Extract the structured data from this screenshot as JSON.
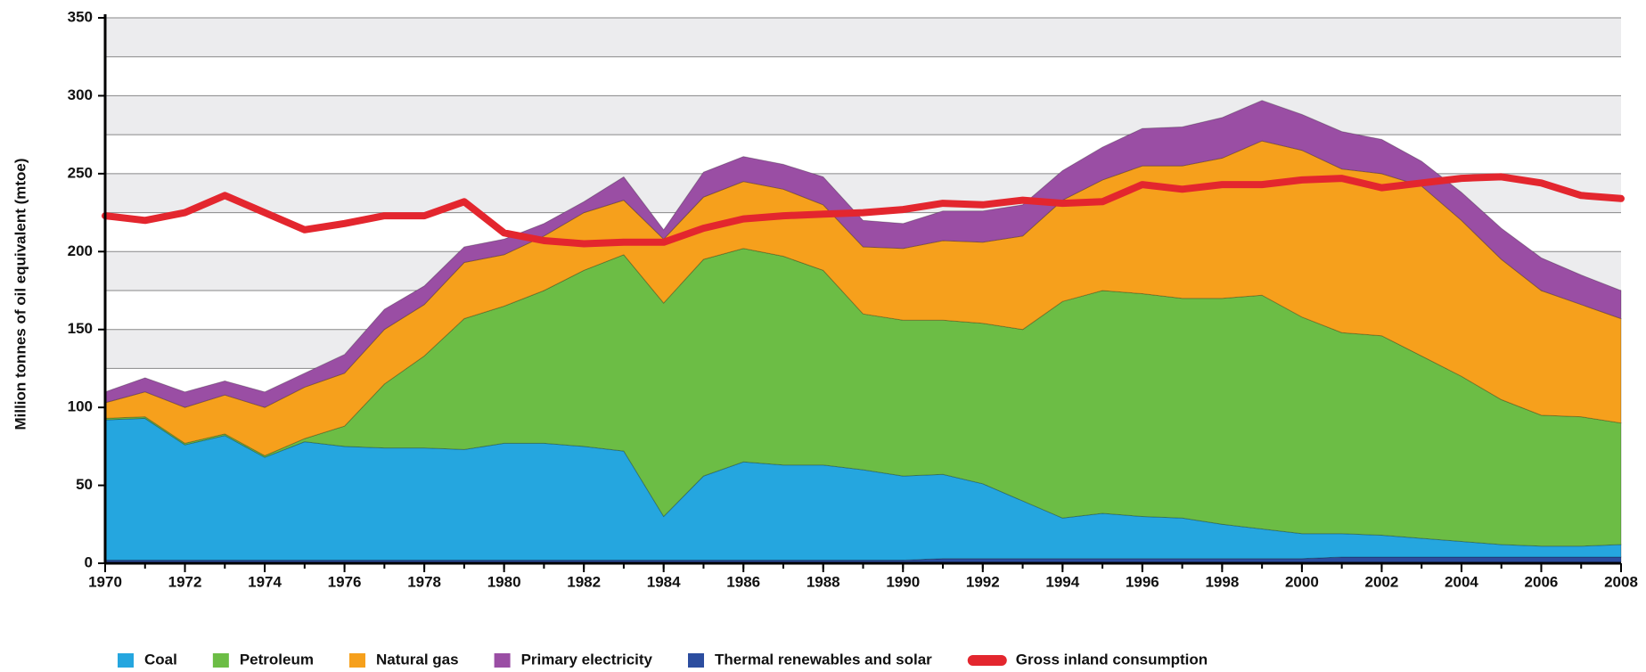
{
  "chart_data": {
    "type": "stacked_area",
    "ylabel": "Million tonnes of oil equivalent (mtoe)",
    "x": [
      1970,
      1971,
      1972,
      1973,
      1974,
      1975,
      1976,
      1977,
      1978,
      1979,
      1980,
      1981,
      1982,
      1983,
      1984,
      1985,
      1986,
      1987,
      1988,
      1989,
      1990,
      1991,
      1992,
      1993,
      1994,
      1995,
      1996,
      1997,
      1998,
      1999,
      2000,
      2001,
      2002,
      2003,
      2004,
      2005,
      2006,
      2007,
      2008
    ],
    "xlim": [
      1970,
      2008
    ],
    "xticks": [
      1970,
      1972,
      1974,
      1976,
      1978,
      1980,
      1982,
      1984,
      1986,
      1988,
      1990,
      1992,
      1994,
      1996,
      1998,
      2000,
      2002,
      2004,
      2006,
      2008
    ],
    "ylim": [
      0,
      350
    ],
    "yticks": [
      0,
      50,
      100,
      150,
      200,
      250,
      300,
      350
    ],
    "grid": true,
    "legend": "bottom",
    "stack_order": [
      4,
      0,
      1,
      2,
      3
    ],
    "series": [
      {
        "name": "Coal",
        "color": "#25a6df",
        "values": [
          90,
          91,
          74,
          80,
          66,
          76,
          73,
          72,
          72,
          71,
          75,
          75,
          73,
          70,
          28,
          54,
          63,
          61,
          61,
          58,
          54,
          54,
          48,
          37,
          26,
          29,
          27,
          26,
          22,
          19,
          16,
          15,
          14,
          12,
          10,
          8,
          7,
          7,
          8
        ]
      },
      {
        "name": "Petroleum",
        "color": "#6cbd45",
        "values": [
          1,
          1,
          1,
          1,
          1,
          2,
          13,
          41,
          59,
          84,
          88,
          98,
          113,
          126,
          137,
          139,
          137,
          134,
          125,
          100,
          100,
          99,
          103,
          110,
          139,
          143,
          143,
          141,
          145,
          150,
          139,
          129,
          128,
          117,
          106,
          93,
          84,
          83,
          78
        ]
      },
      {
        "name": "Natural gas",
        "color": "#f6a01c",
        "values": [
          10,
          16,
          23,
          25,
          31,
          33,
          34,
          35,
          33,
          36,
          33,
          35,
          37,
          35,
          41,
          40,
          43,
          43,
          42,
          43,
          46,
          51,
          52,
          60,
          65,
          71,
          82,
          85,
          90,
          99,
          107,
          105,
          104,
          109,
          100,
          90,
          80,
          72,
          67
        ]
      },
      {
        "name": "Primary electricity",
        "color": "#9a4ea4",
        "values": [
          7,
          9,
          10,
          9,
          10,
          9,
          12,
          13,
          12,
          10,
          10,
          8,
          7,
          15,
          6,
          16,
          16,
          16,
          18,
          17,
          16,
          19,
          20,
          20,
          19,
          21,
          24,
          25,
          26,
          26,
          23,
          24,
          22,
          16,
          18,
          20,
          21,
          19,
          18
        ]
      },
      {
        "name": "Thermal renewables and solar",
        "color": "#2c4d9f",
        "values": [
          2,
          2,
          2,
          2,
          2,
          2,
          2,
          2,
          2,
          2,
          2,
          2,
          2,
          2,
          2,
          2,
          2,
          2,
          2,
          2,
          2,
          3,
          3,
          3,
          3,
          3,
          3,
          3,
          3,
          3,
          3,
          4,
          4,
          4,
          4,
          4,
          4,
          4,
          4
        ]
      },
      {
        "name": "Gross inland consumption",
        "color": "#e3262e",
        "type": "line",
        "values": [
          223,
          220,
          225,
          236,
          225,
          214,
          218,
          223,
          223,
          232,
          212,
          207,
          205,
          206,
          206,
          215,
          221,
          223,
          224,
          225,
          227,
          231,
          230,
          233,
          231,
          232,
          243,
          240,
          243,
          243,
          246,
          247,
          241,
          244,
          247,
          248,
          244,
          236,
          234
        ]
      }
    ]
  }
}
